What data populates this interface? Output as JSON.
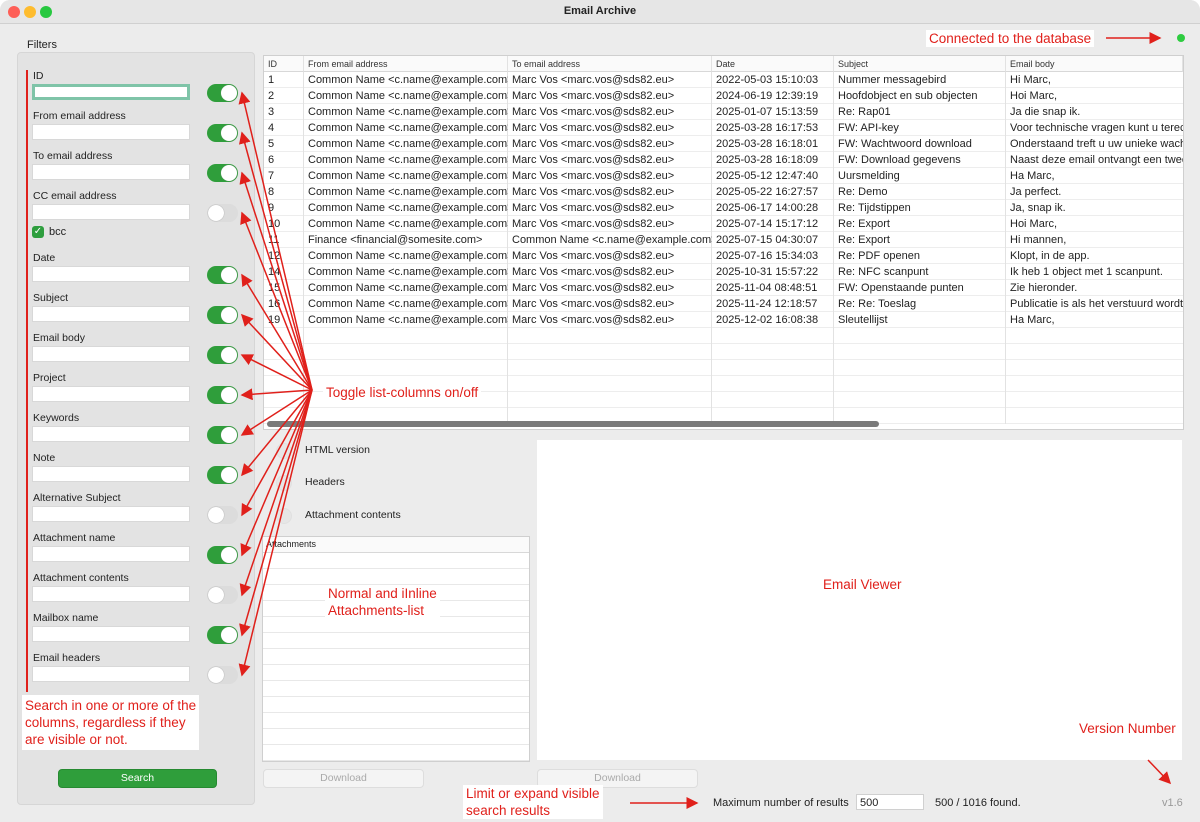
{
  "window": {
    "title": "Email Archive"
  },
  "status": {
    "connected": true
  },
  "filters": {
    "label": "Filters",
    "fields": [
      {
        "label": "ID",
        "on": true
      },
      {
        "label": "From email address",
        "on": true
      },
      {
        "label": "To email address",
        "on": true
      },
      {
        "label": "CC email address",
        "on": false
      },
      {
        "label": "Date",
        "on": true
      },
      {
        "label": "Subject",
        "on": true
      },
      {
        "label": "Email body",
        "on": true
      },
      {
        "label": "Project",
        "on": true
      },
      {
        "label": "Keywords",
        "on": true
      },
      {
        "label": "Note",
        "on": true
      },
      {
        "label": "Alternative Subject",
        "on": false
      },
      {
        "label": "Attachment name",
        "on": true
      },
      {
        "label": "Attachment contents",
        "on": false
      },
      {
        "label": "Mailbox name",
        "on": true
      },
      {
        "label": "Email headers",
        "on": false
      }
    ],
    "bcc": {
      "label": "bcc",
      "checked": true
    },
    "search_button": "Search"
  },
  "table": {
    "columns": [
      "ID",
      "From email address",
      "To email address",
      "Date",
      "Subject",
      "Email body"
    ],
    "rows": [
      [
        "1",
        "Common Name <c.name@example.com>",
        "Marc Vos <marc.vos@sds82.eu>",
        "2022-05-03 15:10:03",
        "Nummer messagebird",
        "Hi Marc,"
      ],
      [
        "2",
        "Common Name <c.name@example.com>",
        "Marc Vos <marc.vos@sds82.eu>",
        "2024-06-19 12:39:19",
        "Hoofdobject en sub objecten",
        "Hoi Marc,"
      ],
      [
        "3",
        "Common Name <c.name@example.com>",
        "Marc Vos <marc.vos@sds82.eu>",
        "2025-01-07 15:13:59",
        "Re: Rap01",
        "Ja die snap ik."
      ],
      [
        "4",
        "Common Name <c.name@example.com>",
        "Marc Vos <marc.vos@sds82.eu>",
        "2025-03-28 16:17:53",
        "FW: API-key",
        "Voor technische vragen kunt u terec"
      ],
      [
        "5",
        "Common Name <c.name@example.com>",
        "Marc Vos <marc.vos@sds82.eu>",
        "2025-03-28 16:18:01",
        "FW: Wachtwoord download",
        "Onderstaand treft u uw unieke wach"
      ],
      [
        "6",
        "Common Name <c.name@example.com>",
        "Marc Vos <marc.vos@sds82.eu>",
        "2025-03-28 16:18:09",
        "FW: Download gegevens",
        "Naast deze email ontvangt een twee"
      ],
      [
        "7",
        "Common Name <c.name@example.com>",
        "Marc Vos <marc.vos@sds82.eu>",
        "2025-05-12 12:47:40",
        "Uursmelding",
        "Ha Marc,"
      ],
      [
        "8",
        "Common Name <c.name@example.com>",
        "Marc Vos <marc.vos@sds82.eu>",
        "2025-05-22 16:27:57",
        "Re: Demo",
        "Ja perfect."
      ],
      [
        "9",
        "Common Name <c.name@example.com>",
        "Marc Vos <marc.vos@sds82.eu>",
        "2025-06-17 14:00:28",
        "Re: Tijdstippen",
        "Ja, snap ik."
      ],
      [
        "10",
        "Common Name <c.name@example.com>",
        "Marc Vos <marc.vos@sds82.eu>",
        "2025-07-14 15:17:12",
        "Re: Export",
        "Hoi Marc,"
      ],
      [
        "11",
        "Finance <financial@somesite.com>",
        "Common Name <c.name@example.com>",
        "2025-07-15 04:30:07",
        "Re: Export",
        "Hi mannen,"
      ],
      [
        "12",
        "Common Name <c.name@example.com>",
        "Marc Vos <marc.vos@sds82.eu>",
        "2025-07-16 15:34:03",
        "Re: PDF openen",
        "Klopt, in de app."
      ],
      [
        "14",
        "Common Name <c.name@example.com>",
        "Marc Vos <marc.vos@sds82.eu>",
        "2025-10-31 15:57:22",
        "Re: NFC scanpunt",
        "Ik heb 1 object met 1 scanpunt."
      ],
      [
        "15",
        "Common Name <c.name@example.com>",
        "Marc Vos <marc.vos@sds82.eu>",
        "2025-11-04 08:48:51",
        "FW: Openstaande punten",
        "Zie hieronder."
      ],
      [
        "16",
        "Common Name <c.name@example.com>",
        "Marc Vos <marc.vos@sds82.eu>",
        "2025-11-24 12:18:57",
        "Re: Re: Toeslag",
        "Publicatie is als het verstuurd wordt"
      ],
      [
        "19",
        "Common Name <c.name@example.com>",
        "Marc Vos <marc.vos@sds82.eu>",
        "2025-12-02 16:08:38",
        "Sleutellijst",
        "Ha Marc,"
      ]
    ]
  },
  "view_options": [
    "HTML version",
    "Headers",
    "Attachment contents"
  ],
  "attachments": {
    "header": "Attachments",
    "download": "Download"
  },
  "viewer": {
    "download": "Download"
  },
  "results": {
    "label": "Maximum number of results",
    "limit": "500",
    "found": "500 / 1016 found."
  },
  "version": "v1.6",
  "annotations": {
    "connected": "Connected to the database",
    "toggle": "Toggle list-columns on/off",
    "attachments": [
      "Normal and iInline",
      "Attachments-list"
    ],
    "viewer": "Email Viewer",
    "search": [
      "Search in one or more of the",
      "columns, regardless if they",
      "are visible or not."
    ],
    "version": "Version Number",
    "limit": [
      "Limit or expand visible",
      "search results"
    ]
  }
}
